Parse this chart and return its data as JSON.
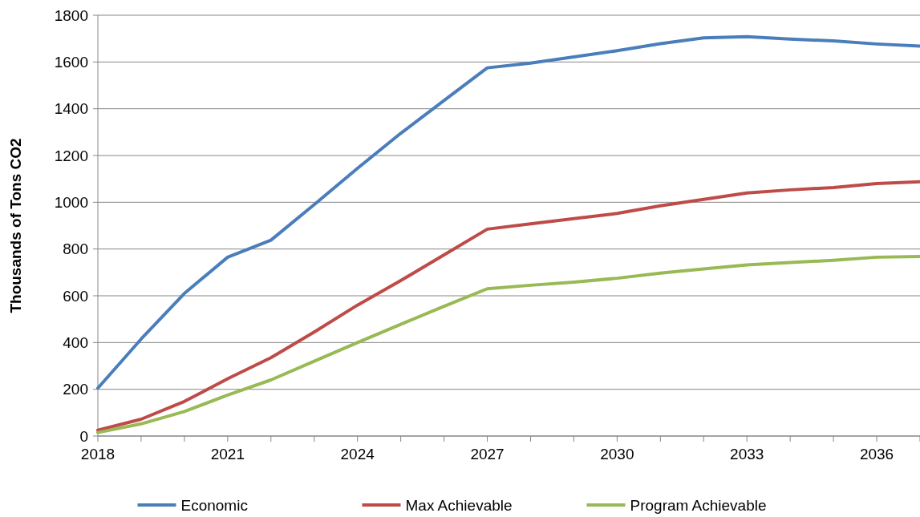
{
  "chart_data": {
    "type": "line",
    "ylabel": "Thousands of Tons CO2",
    "x": [
      2018,
      2019,
      2020,
      2021,
      2022,
      2023,
      2024,
      2025,
      2026,
      2027,
      2028,
      2029,
      2030,
      2031,
      2032,
      2033,
      2034,
      2035,
      2036,
      2037
    ],
    "series": [
      {
        "name": "Economic",
        "color": "#4a7ebb",
        "values": [
          205,
          415,
          610,
          765,
          838,
          990,
          1145,
          1295,
          1435,
          1575,
          1595,
          1622,
          1648,
          1678,
          1703,
          1708,
          1698,
          1690,
          1677,
          1668
        ]
      },
      {
        "name": "Max Achievable",
        "color": "#be4b48",
        "values": [
          25,
          72,
          148,
          245,
          335,
          445,
          560,
          665,
          775,
          885,
          908,
          930,
          952,
          985,
          1012,
          1040,
          1053,
          1063,
          1080,
          1088
        ]
      },
      {
        "name": "Program Achievable",
        "color": "#98b954",
        "values": [
          15,
          52,
          105,
          175,
          240,
          320,
          400,
          478,
          555,
          630,
          645,
          658,
          675,
          697,
          715,
          732,
          742,
          752,
          765,
          768
        ]
      }
    ],
    "xlim": [
      2018,
      2037
    ],
    "xticks": [
      2018,
      {
        "value": 2019,
        "label": null
      },
      {
        "value": 2020,
        "label": null
      },
      2021,
      {
        "value": 2022,
        "label": null
      },
      {
        "value": 2023,
        "label": null
      },
      2024,
      {
        "value": 2025,
        "label": null
      },
      {
        "value": 2026,
        "label": null
      },
      2027,
      {
        "value": 2028,
        "label": null
      },
      {
        "value": 2029,
        "label": null
      },
      2030,
      {
        "value": 2031,
        "label": null
      },
      {
        "value": 2032,
        "label": null
      },
      2033,
      {
        "value": 2034,
        "label": null
      },
      {
        "value": 2035,
        "label": null
      },
      2036,
      {
        "value": 2037,
        "label": null
      }
    ],
    "ylim": [
      0,
      1800
    ],
    "yticks": [
      0,
      200,
      400,
      600,
      800,
      1000,
      1200,
      1400,
      1600,
      1800
    ],
    "grid": "y",
    "legend": "bottom",
    "marker": "none",
    "line_style": "solid"
  }
}
